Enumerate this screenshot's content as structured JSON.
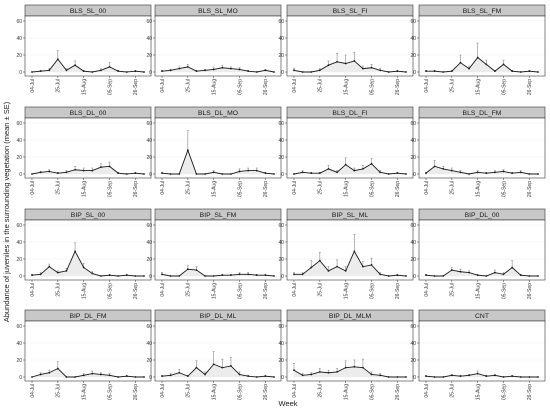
{
  "figure": {
    "xlabel": "Week",
    "ylabel": "Abundance of juveniles in the surrounding vegetation (mean ± SE)",
    "x_ticks": [
      "04-Jul",
      "25-Jul",
      "15-Aug",
      "05-Sep",
      "26-Sep"
    ],
    "y_ticks": [
      0,
      20,
      40,
      60
    ],
    "colors": {
      "strip": "#c8c8c8",
      "fill": "#ececec",
      "line": "#1a1a1a",
      "error_bar": "#888888",
      "grid": "#ebebeb",
      "frame": "#333333"
    }
  },
  "chart_data": [
    {
      "type": "line",
      "title": "BLS_SL_00",
      "ylim": [
        0,
        60
      ],
      "x": [
        "04-Jul",
        "11-Jul",
        "18-Jul",
        "25-Jul",
        "01-Aug",
        "08-Aug",
        "15-Aug",
        "22-Aug",
        "29-Aug",
        "05-Sep",
        "12-Sep",
        "19-Sep",
        "26-Sep",
        "03-Oct"
      ],
      "values": [
        0,
        1,
        2,
        15,
        2,
        8,
        1,
        0,
        2,
        6,
        1,
        0,
        1,
        0
      ],
      "errors": [
        0,
        1,
        2,
        10,
        2,
        5,
        1,
        0,
        2,
        5,
        1,
        0,
        1,
        0
      ]
    },
    {
      "type": "line",
      "title": "BLS_SL_MO",
      "ylim": [
        0,
        60
      ],
      "x": [
        "04-Jul",
        "11-Jul",
        "18-Jul",
        "25-Jul",
        "01-Aug",
        "08-Aug",
        "15-Aug",
        "22-Aug",
        "29-Aug",
        "05-Sep",
        "12-Sep",
        "19-Sep",
        "26-Sep",
        "03-Oct"
      ],
      "values": [
        1,
        2,
        4,
        6,
        1,
        2,
        3,
        5,
        4,
        3,
        1,
        0,
        2,
        0
      ],
      "errors": [
        1,
        1,
        2,
        3,
        1,
        1,
        2,
        3,
        2,
        2,
        1,
        0,
        1,
        0
      ]
    },
    {
      "type": "line",
      "title": "BLS_SL_FI",
      "ylim": [
        0,
        60
      ],
      "x": [
        "04-Jul",
        "11-Jul",
        "18-Jul",
        "25-Jul",
        "01-Aug",
        "08-Aug",
        "15-Aug",
        "22-Aug",
        "29-Aug",
        "05-Sep",
        "12-Sep",
        "19-Sep",
        "26-Sep",
        "03-Oct"
      ],
      "values": [
        2,
        0,
        0,
        2,
        8,
        12,
        10,
        13,
        4,
        5,
        2,
        0,
        1,
        0
      ],
      "errors": [
        2,
        0,
        0,
        2,
        5,
        10,
        10,
        10,
        3,
        4,
        2,
        0,
        1,
        0
      ]
    },
    {
      "type": "line",
      "title": "BLS_SL_FM",
      "ylim": [
        0,
        60
      ],
      "x": [
        "04-Jul",
        "11-Jul",
        "18-Jul",
        "25-Jul",
        "01-Aug",
        "08-Aug",
        "15-Aug",
        "22-Aug",
        "29-Aug",
        "05-Sep",
        "12-Sep",
        "19-Sep",
        "26-Sep",
        "03-Oct"
      ],
      "values": [
        1,
        1,
        0,
        1,
        11,
        4,
        17,
        9,
        1,
        9,
        1,
        0,
        1,
        0
      ],
      "errors": [
        1,
        1,
        0,
        1,
        9,
        3,
        17,
        5,
        1,
        5,
        1,
        0,
        1,
        0
      ]
    },
    {
      "type": "line",
      "title": "BLS_DL_00",
      "ylim": [
        0,
        60
      ],
      "x": [
        "04-Jul",
        "11-Jul",
        "18-Jul",
        "25-Jul",
        "01-Aug",
        "08-Aug",
        "15-Aug",
        "22-Aug",
        "29-Aug",
        "05-Sep",
        "12-Sep",
        "19-Sep",
        "26-Sep",
        "03-Oct"
      ],
      "values": [
        0,
        2,
        3,
        1,
        2,
        5,
        4,
        4,
        8,
        9,
        1,
        0,
        1,
        0
      ],
      "errors": [
        0,
        1,
        2,
        1,
        2,
        4,
        3,
        3,
        4,
        5,
        1,
        0,
        1,
        0
      ]
    },
    {
      "type": "line",
      "title": "BLS_DL_MO",
      "ylim": [
        0,
        60
      ],
      "x": [
        "04-Jul",
        "11-Jul",
        "18-Jul",
        "25-Jul",
        "01-Aug",
        "08-Aug",
        "15-Aug",
        "22-Aug",
        "29-Aug",
        "05-Sep",
        "12-Sep",
        "19-Sep",
        "26-Sep",
        "03-Oct"
      ],
      "values": [
        1,
        0,
        0,
        28,
        0,
        0,
        2,
        0,
        0,
        3,
        4,
        4,
        1,
        0
      ],
      "errors": [
        1,
        0,
        0,
        23,
        0,
        0,
        2,
        0,
        0,
        3,
        3,
        3,
        1,
        0
      ]
    },
    {
      "type": "line",
      "title": "BLS_DL_FI",
      "ylim": [
        0,
        60
      ],
      "x": [
        "04-Jul",
        "11-Jul",
        "18-Jul",
        "25-Jul",
        "01-Aug",
        "08-Aug",
        "15-Aug",
        "22-Aug",
        "29-Aug",
        "05-Sep",
        "12-Sep",
        "19-Sep",
        "26-Sep",
        "03-Oct"
      ],
      "values": [
        0,
        2,
        1,
        1,
        6,
        2,
        11,
        4,
        6,
        12,
        2,
        0,
        1,
        0
      ],
      "errors": [
        0,
        2,
        1,
        1,
        4,
        2,
        8,
        3,
        4,
        6,
        2,
        0,
        1,
        0
      ]
    },
    {
      "type": "line",
      "title": "BLS_DL_FM",
      "ylim": [
        0,
        60
      ],
      "x": [
        "04-Jul",
        "11-Jul",
        "18-Jul",
        "25-Jul",
        "01-Aug",
        "08-Aug",
        "15-Aug",
        "22-Aug",
        "29-Aug",
        "05-Sep",
        "12-Sep",
        "19-Sep",
        "26-Sep",
        "03-Oct"
      ],
      "values": [
        1,
        9,
        6,
        4,
        2,
        0,
        2,
        1,
        2,
        3,
        1,
        2,
        0,
        0
      ],
      "errors": [
        1,
        7,
        3,
        3,
        2,
        0,
        2,
        1,
        2,
        2,
        1,
        2,
        0,
        0
      ]
    },
    {
      "type": "line",
      "title": "BIP_SL_00",
      "ylim": [
        0,
        60
      ],
      "x": [
        "04-Jul",
        "11-Jul",
        "18-Jul",
        "25-Jul",
        "01-Aug",
        "08-Aug",
        "15-Aug",
        "22-Aug",
        "29-Aug",
        "05-Sep",
        "12-Sep",
        "19-Sep",
        "26-Sep",
        "03-Oct"
      ],
      "values": [
        1,
        2,
        11,
        4,
        6,
        29,
        10,
        3,
        0,
        1,
        0,
        1,
        0,
        0
      ],
      "errors": [
        1,
        2,
        3,
        2,
        3,
        10,
        5,
        2,
        0,
        1,
        0,
        1,
        0,
        0
      ]
    },
    {
      "type": "line",
      "title": "BIP_SL_FM",
      "ylim": [
        0,
        60
      ],
      "x": [
        "04-Jul",
        "11-Jul",
        "18-Jul",
        "25-Jul",
        "01-Aug",
        "08-Aug",
        "15-Aug",
        "22-Aug",
        "29-Aug",
        "05-Sep",
        "12-Sep",
        "19-Sep",
        "26-Sep",
        "03-Oct"
      ],
      "values": [
        2,
        0,
        0,
        8,
        7,
        0,
        0,
        1,
        1,
        2,
        2,
        1,
        1,
        0
      ],
      "errors": [
        2,
        0,
        0,
        4,
        4,
        0,
        0,
        1,
        1,
        2,
        2,
        1,
        1,
        0
      ]
    },
    {
      "type": "line",
      "title": "BIP_SL_ML",
      "ylim": [
        0,
        60
      ],
      "x": [
        "04-Jul",
        "11-Jul",
        "18-Jul",
        "25-Jul",
        "01-Aug",
        "08-Aug",
        "15-Aug",
        "22-Aug",
        "29-Aug",
        "05-Sep",
        "12-Sep",
        "19-Sep",
        "26-Sep",
        "03-Oct"
      ],
      "values": [
        2,
        2,
        10,
        18,
        6,
        11,
        6,
        29,
        11,
        13,
        2,
        0,
        1,
        0
      ],
      "errors": [
        2,
        2,
        8,
        10,
        5,
        8,
        5,
        20,
        6,
        8,
        2,
        0,
        1,
        0
      ]
    },
    {
      "type": "line",
      "title": "BIP_DL_00",
      "ylim": [
        0,
        60
      ],
      "x": [
        "04-Jul",
        "11-Jul",
        "18-Jul",
        "25-Jul",
        "01-Aug",
        "08-Aug",
        "15-Aug",
        "22-Aug",
        "29-Aug",
        "05-Sep",
        "12-Sep",
        "19-Sep",
        "26-Sep",
        "03-Oct"
      ],
      "values": [
        1,
        0,
        0,
        7,
        5,
        4,
        1,
        0,
        4,
        2,
        10,
        1,
        0,
        0
      ],
      "errors": [
        1,
        0,
        0,
        3,
        3,
        2,
        1,
        0,
        3,
        2,
        8,
        1,
        0,
        0
      ]
    },
    {
      "type": "line",
      "title": "BIP_DL_FM",
      "ylim": [
        0,
        60
      ],
      "x": [
        "04-Jul",
        "11-Jul",
        "18-Jul",
        "25-Jul",
        "01-Aug",
        "08-Aug",
        "15-Aug",
        "22-Aug",
        "29-Aug",
        "05-Sep",
        "12-Sep",
        "19-Sep",
        "26-Sep",
        "03-Oct"
      ],
      "values": [
        0,
        3,
        5,
        10,
        0,
        0,
        2,
        4,
        3,
        2,
        0,
        1,
        0,
        0
      ],
      "errors": [
        0,
        2,
        3,
        8,
        0,
        0,
        2,
        3,
        2,
        2,
        0,
        1,
        0,
        0
      ]
    },
    {
      "type": "line",
      "title": "BIP_DL_ML",
      "ylim": [
        0,
        60
      ],
      "x": [
        "04-Jul",
        "11-Jul",
        "18-Jul",
        "25-Jul",
        "01-Aug",
        "08-Aug",
        "15-Aug",
        "22-Aug",
        "29-Aug",
        "05-Sep",
        "12-Sep",
        "19-Sep",
        "26-Sep",
        "03-Oct"
      ],
      "values": [
        1,
        2,
        5,
        1,
        11,
        3,
        15,
        11,
        13,
        3,
        1,
        0,
        1,
        0
      ],
      "errors": [
        1,
        2,
        4,
        1,
        8,
        3,
        15,
        10,
        10,
        3,
        1,
        0,
        1,
        0
      ]
    },
    {
      "type": "line",
      "title": "BIP_DL_MLM",
      "ylim": [
        0,
        60
      ],
      "x": [
        "04-Jul",
        "11-Jul",
        "18-Jul",
        "25-Jul",
        "01-Aug",
        "08-Aug",
        "15-Aug",
        "22-Aug",
        "29-Aug",
        "05-Sep",
        "12-Sep",
        "19-Sep",
        "26-Sep",
        "03-Oct"
      ],
      "values": [
        8,
        2,
        3,
        6,
        5,
        6,
        11,
        12,
        11,
        3,
        2,
        0,
        0,
        0
      ],
      "errors": [
        8,
        2,
        2,
        4,
        3,
        4,
        8,
        8,
        10,
        3,
        2,
        0,
        0,
        0
      ]
    },
    {
      "type": "line",
      "title": "CNT",
      "ylim": [
        0,
        60
      ],
      "x": [
        "04-Jul",
        "11-Jul",
        "18-Jul",
        "25-Jul",
        "01-Aug",
        "08-Aug",
        "15-Aug",
        "22-Aug",
        "29-Aug",
        "05-Sep",
        "12-Sep",
        "19-Sep",
        "26-Sep",
        "03-Oct"
      ],
      "values": [
        1,
        0,
        0,
        2,
        1,
        2,
        4,
        1,
        2,
        0,
        1,
        0,
        0,
        0
      ],
      "errors": [
        1,
        0,
        0,
        1,
        1,
        1,
        3,
        1,
        1,
        0,
        1,
        0,
        0,
        0
      ]
    }
  ]
}
